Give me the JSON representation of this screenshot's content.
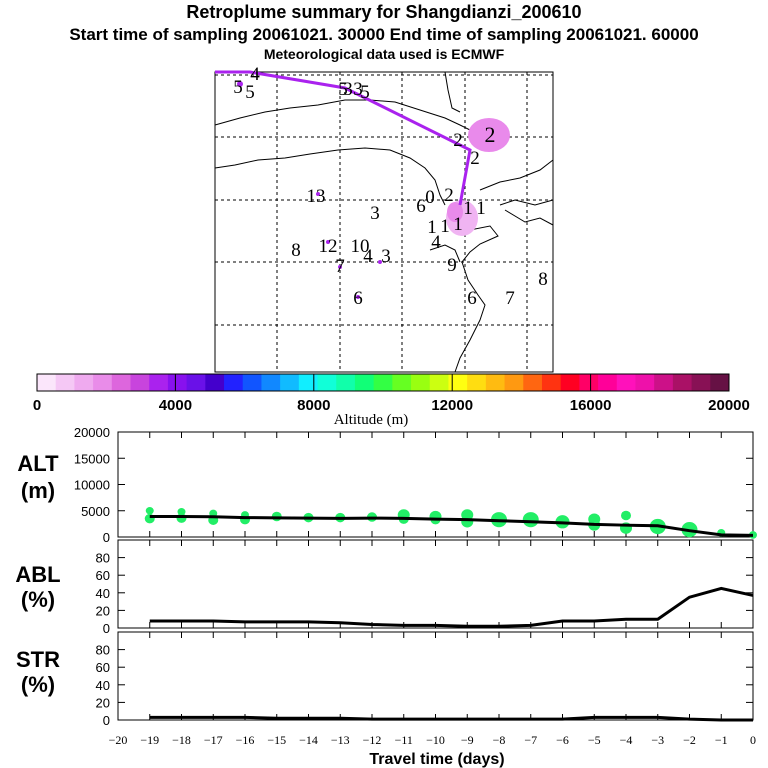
{
  "title": {
    "line1": "Retroplume summary for Shangdianzi_200610",
    "line2": "Start time of sampling 20061021. 30000     End time of sampling 20061021. 60000",
    "line3": "Meteorological data used is ECMWF"
  },
  "colorbar": {
    "ticks": [
      "0",
      "4000",
      "8000",
      "12000",
      "16000",
      "20000"
    ],
    "label": "Altitude (m)"
  },
  "map_labels": [
    {
      "t": "5"
    },
    {
      "t": "4"
    },
    {
      "t": "5"
    },
    {
      "t": "3"
    },
    {
      "t": "5"
    },
    {
      "t": "5"
    },
    {
      "t": "3"
    },
    {
      "t": "2"
    },
    {
      "t": "2"
    },
    {
      "t": "2"
    },
    {
      "t": "13"
    },
    {
      "t": "3"
    },
    {
      "t": "0"
    },
    {
      "t": "2"
    },
    {
      "t": "6"
    },
    {
      "t": "1"
    },
    {
      "t": "1"
    },
    {
      "t": "1"
    },
    {
      "t": "1"
    },
    {
      "t": "1"
    },
    {
      "t": "4"
    },
    {
      "t": "8"
    },
    {
      "t": "12"
    },
    {
      "t": "10"
    },
    {
      "t": "4"
    },
    {
      "t": "3"
    },
    {
      "t": "7"
    },
    {
      "t": "9"
    },
    {
      "t": "6"
    },
    {
      "t": "6"
    },
    {
      "t": "7"
    },
    {
      "t": "8"
    }
  ],
  "chart_data": [
    {
      "type": "scatter",
      "name": "ALT",
      "ylabel": "ALT\n(m)",
      "ylim": [
        0,
        20000
      ],
      "yticks": [
        0,
        5000,
        10000,
        15000,
        20000
      ],
      "x": [
        -19,
        -18,
        -17,
        -16,
        -15,
        -14,
        -13,
        -12,
        -11,
        -10,
        -9,
        -8,
        -7,
        -6,
        -5,
        -4,
        -3,
        -2,
        -1,
        0
      ],
      "line_values": [
        3900,
        3900,
        3850,
        3700,
        3650,
        3600,
        3550,
        3600,
        3550,
        3400,
        3300,
        3100,
        2900,
        2700,
        2400,
        2250,
        2150,
        1200,
        400,
        300
      ],
      "points": [
        {
          "x": -19,
          "y": 5000,
          "size": 4
        },
        {
          "x": -19,
          "y": 3500,
          "size": 5
        },
        {
          "x": -18,
          "y": 4800,
          "size": 4
        },
        {
          "x": -18,
          "y": 3600,
          "size": 5
        },
        {
          "x": -17,
          "y": 4500,
          "size": 4
        },
        {
          "x": -17,
          "y": 3200,
          "size": 5
        },
        {
          "x": -16,
          "y": 4200,
          "size": 4
        },
        {
          "x": -16,
          "y": 3300,
          "size": 5
        },
        {
          "x": -15,
          "y": 3900,
          "size": 5
        },
        {
          "x": -14,
          "y": 3700,
          "size": 5
        },
        {
          "x": -13,
          "y": 3700,
          "size": 5
        },
        {
          "x": -12,
          "y": 3800,
          "size": 5
        },
        {
          "x": -11,
          "y": 4200,
          "size": 6
        },
        {
          "x": -11,
          "y": 3400,
          "size": 5
        },
        {
          "x": -10,
          "y": 3900,
          "size": 6
        },
        {
          "x": -10,
          "y": 3300,
          "size": 5
        },
        {
          "x": -9,
          "y": 4200,
          "size": 6
        },
        {
          "x": -9,
          "y": 2900,
          "size": 6
        },
        {
          "x": -8,
          "y": 3300,
          "size": 8
        },
        {
          "x": -7,
          "y": 3300,
          "size": 8
        },
        {
          "x": -6,
          "y": 2900,
          "size": 7
        },
        {
          "x": -5,
          "y": 3400,
          "size": 6
        },
        {
          "x": -5,
          "y": 2300,
          "size": 6
        },
        {
          "x": -4,
          "y": 4100,
          "size": 5
        },
        {
          "x": -4,
          "y": 1700,
          "size": 6
        },
        {
          "x": -3,
          "y": 2000,
          "size": 8
        },
        {
          "x": -2,
          "y": 1400,
          "size": 8
        },
        {
          "x": -1,
          "y": 800,
          "size": 4
        },
        {
          "x": 0,
          "y": 400,
          "size": 4
        }
      ]
    },
    {
      "type": "line",
      "name": "ABL",
      "ylabel": "ABL\n(%)",
      "ylim": [
        0,
        100
      ],
      "yticks": [
        0,
        20,
        40,
        60,
        80
      ],
      "x": [
        -19,
        -18,
        -17,
        -16,
        -15,
        -14,
        -13,
        -12,
        -11,
        -10,
        -9,
        -8,
        -7,
        -6,
        -5,
        -4,
        -3,
        -2,
        -1,
        0
      ],
      "values": [
        8,
        8,
        8,
        7,
        7,
        7,
        6,
        4,
        3,
        3,
        2,
        2,
        3,
        8,
        8,
        10,
        10,
        35,
        45,
        37
      ]
    },
    {
      "type": "line",
      "name": "STR",
      "ylabel": "STR\n(%)",
      "ylim": [
        0,
        100
      ],
      "yticks": [
        0,
        20,
        40,
        60,
        80
      ],
      "x": [
        -19,
        -18,
        -17,
        -16,
        -15,
        -14,
        -13,
        -12,
        -11,
        -10,
        -9,
        -8,
        -7,
        -6,
        -5,
        -4,
        -3,
        -2,
        -1,
        0
      ],
      "values": [
        3,
        3,
        3,
        3,
        2,
        2,
        2,
        1,
        1,
        1,
        1,
        1,
        1,
        1,
        3,
        3,
        3,
        1,
        0,
        0
      ],
      "xlabel": "Travel time (days)",
      "xticks": [
        -20,
        -19,
        -18,
        -17,
        -16,
        -15,
        -14,
        -13,
        -12,
        -11,
        -10,
        -9,
        -8,
        -7,
        -6,
        -5,
        -4,
        -3,
        -2,
        -1,
        0
      ],
      "xlim": [
        -20,
        0
      ]
    }
  ],
  "colors": {
    "track": "#aa22ee",
    "plume": "#e98aeb",
    "scatter": "#22ee66",
    "line": "#000000"
  }
}
